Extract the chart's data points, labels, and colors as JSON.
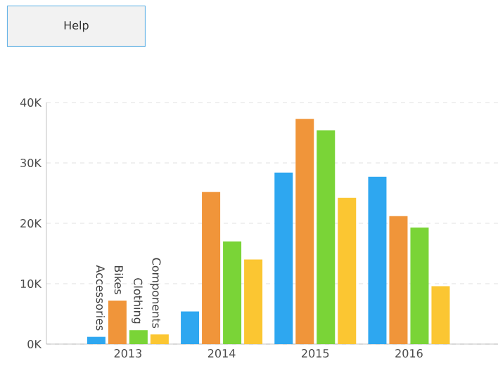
{
  "chart_data": {
    "type": "bar",
    "categories": [
      "2013",
      "2014",
      "2015",
      "2016"
    ],
    "series": [
      {
        "name": "Accessories",
        "color": "#2ea7f0",
        "values": [
          1.2,
          5.4,
          28.4,
          27.7
        ]
      },
      {
        "name": "Bikes",
        "color": "#f0953a",
        "values": [
          7.2,
          25.2,
          37.3,
          21.2
        ]
      },
      {
        "name": "Clothing",
        "color": "#7ad437",
        "values": [
          2.3,
          17.0,
          35.4,
          19.3
        ]
      },
      {
        "name": "Components",
        "color": "#fbc632",
        "values": [
          1.6,
          14.0,
          24.2,
          9.6
        ]
      }
    ],
    "ylim": [
      0,
      40
    ],
    "yticks": [
      {
        "value": 0,
        "label": "0K"
      },
      {
        "value": 10,
        "label": "10K"
      },
      {
        "value": 20,
        "label": "20K"
      },
      {
        "value": 30,
        "label": "30K"
      },
      {
        "value": 40,
        "label": "40K"
      }
    ],
    "grid": "y",
    "annotations": [
      "Help"
    ]
  }
}
